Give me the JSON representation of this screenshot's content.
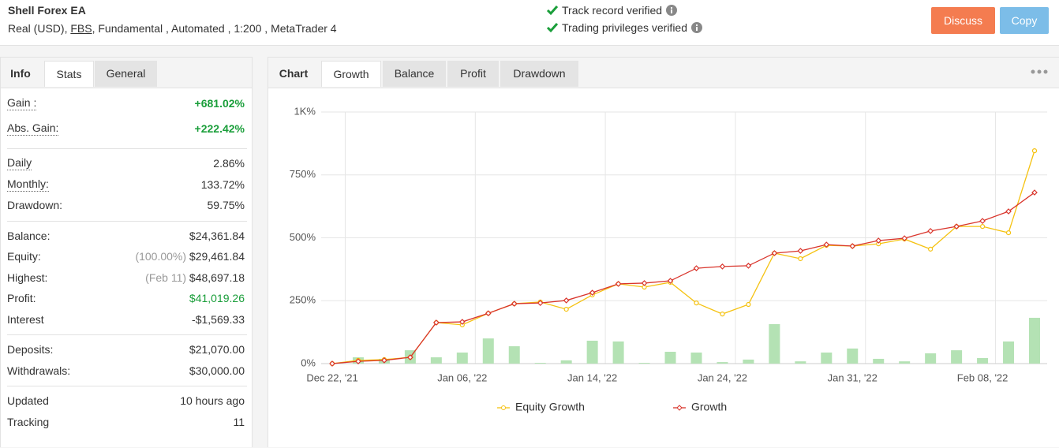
{
  "header": {
    "title": "Shell Forex EA",
    "account": "Real (USD)",
    "broker": "FBS",
    "details": ", Fundamental , Automated , 1:200 , MetaTrader 4",
    "verified": [
      "Track record verified",
      "Trading privileges verified"
    ],
    "buttons": [
      {
        "label": "Discuss",
        "color": "#f47c50"
      },
      {
        "label": "Copy",
        "color": "#7cbde8"
      }
    ]
  },
  "left_tabs": [
    "Info",
    "Stats",
    "General"
  ],
  "stats": [
    [
      {
        "label": "Gain :",
        "value": "+681.02%",
        "color": "#1a9e3a"
      },
      {
        "label": "Abs. Gain:",
        "value": "+222.42%",
        "color": "#1a9e3a"
      }
    ],
    [
      {
        "label": "Daily",
        "value": "2.86%"
      },
      {
        "label": "Monthly:",
        "value": "133.72%"
      },
      {
        "label": "Drawdown:",
        "value": "59.75%"
      }
    ],
    [
      {
        "label": "Balance:",
        "value": "$24,361.84"
      },
      {
        "label": "Equity:",
        "note": "(100.00%)",
        "value": "$29,461.84"
      },
      {
        "label": "Highest:",
        "note": "(Feb 11)",
        "value": "$48,697.18"
      },
      {
        "label": "Profit:",
        "value": "$41,019.26",
        "color": "#1a9e3a"
      },
      {
        "label": "Interest",
        "value": "-$1,569.33"
      }
    ],
    [
      {
        "label": "Deposits:",
        "value": "$21,070.00"
      },
      {
        "label": "Withdrawals:",
        "value": "$30,000.00"
      }
    ],
    [
      {
        "label": "Updated",
        "value": "10 hours ago"
      },
      {
        "label": "Tracking",
        "value": "11"
      }
    ]
  ],
  "chart_tabs": [
    "Chart",
    "Growth",
    "Balance",
    "Profit",
    "Drawdown"
  ],
  "chart_data": {
    "type": "line",
    "categories": [
      "Dec 22, '21",
      null,
      null,
      null,
      null,
      "Jan 06, '22",
      null,
      null,
      null,
      null,
      "Jan 14, '22",
      null,
      null,
      null,
      null,
      "Jan 24, '22",
      null,
      null,
      null,
      null,
      "Jan 31, '22",
      null,
      null,
      null,
      null,
      "Feb 08, '22",
      null,
      null
    ],
    "series": [
      {
        "name": "Equity Growth",
        "color": "#f5c211",
        "values": [
          0,
          13,
          16,
          25,
          163,
          154,
          200,
          238,
          245,
          216,
          273,
          317,
          304,
          323,
          241,
          197,
          235,
          439,
          417,
          470,
          467,
          476,
          495,
          455,
          545,
          545,
          520,
          846
        ]
      },
      {
        "name": "Growth",
        "color": "#d9342b",
        "values": [
          0,
          9,
          13,
          25,
          163,
          166,
          200,
          238,
          241,
          251,
          282,
          317,
          320,
          329,
          379,
          386,
          389,
          439,
          448,
          473,
          467,
          489,
          498,
          527,
          545,
          567,
          605,
          680
        ]
      }
    ],
    "bars": {
      "color": "#b4e2b4",
      "values": [
        null,
        25,
        19,
        53,
        25,
        44,
        100,
        69,
        3,
        13,
        91,
        88,
        3,
        47,
        44,
        6,
        16,
        157,
        9,
        44,
        60,
        19,
        9,
        41,
        53,
        22,
        88,
        182
      ]
    },
    "ylim": [
      0,
      1000
    ],
    "yticks": [
      {
        "value": 0,
        "label": "0%"
      },
      {
        "value": 250,
        "label": "250%"
      },
      {
        "value": 500,
        "label": "500%"
      },
      {
        "value": 750,
        "label": "750%"
      },
      {
        "value": 1000,
        "label": "1K%"
      }
    ],
    "grid": true
  }
}
